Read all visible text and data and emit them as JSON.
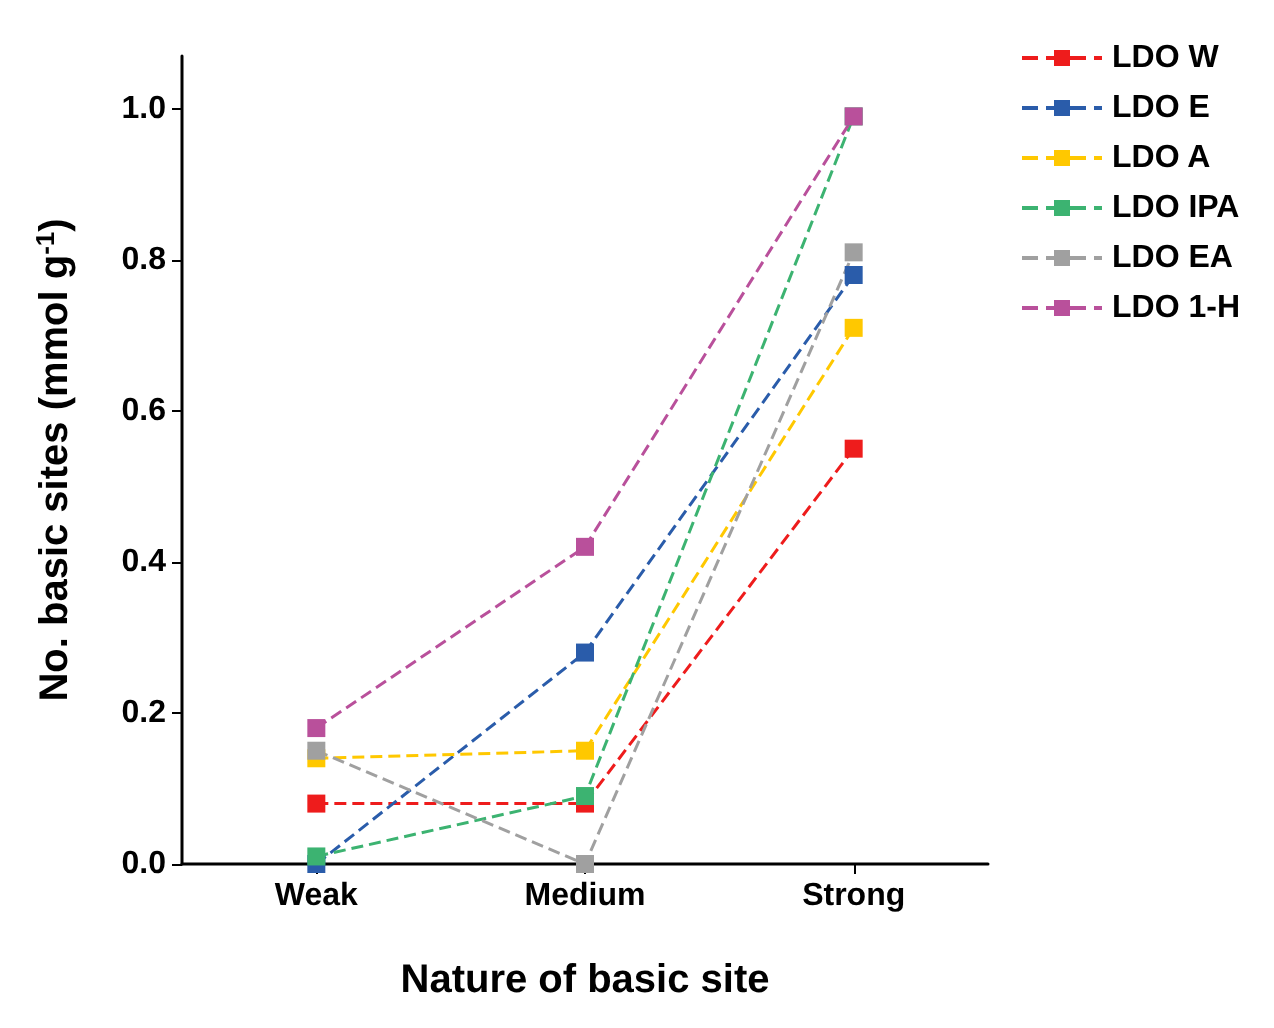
{
  "chart_data": {
    "type": "line",
    "xlabel": "Nature of basic site",
    "ylabel": "No. basic sites (mmol g$^{-1}$)",
    "categories": [
      "Weak",
      "Medium",
      "Strong"
    ],
    "ylim": [
      0,
      1.07
    ],
    "yticks": [
      {
        "value": 0,
        "label": "0.0"
      },
      {
        "value": 0.2,
        "label": "0.2"
      },
      {
        "value": 0.4,
        "label": "0.4"
      },
      {
        "value": 0.6,
        "label": "0.6"
      },
      {
        "value": 0.8,
        "label": "0.8"
      },
      {
        "value": 1,
        "label": "1.0"
      }
    ],
    "marker": "square",
    "line_style": "dashed",
    "grid": false,
    "legend": "top right",
    "series": [
      {
        "name": "LDO W",
        "color": "#ee1c1c",
        "values": [
          0.08,
          0.08,
          0.55
        ]
      },
      {
        "name": "LDO E",
        "color": "#2a5caa",
        "values": [
          0.0,
          0.28,
          0.78
        ]
      },
      {
        "name": "LDO A",
        "color": "#ffc800",
        "values": [
          0.14,
          0.15,
          0.71
        ]
      },
      {
        "name": "LDO IPA",
        "color": "#3cb371",
        "values": [
          0.01,
          0.09,
          0.99
        ]
      },
      {
        "name": "LDO EA",
        "color": "#a0a0a0",
        "values": [
          0.15,
          0.0,
          0.81
        ]
      },
      {
        "name": "LDO 1-H",
        "color": "#b9509b",
        "values": [
          0.18,
          0.42,
          0.99
        ]
      }
    ]
  }
}
